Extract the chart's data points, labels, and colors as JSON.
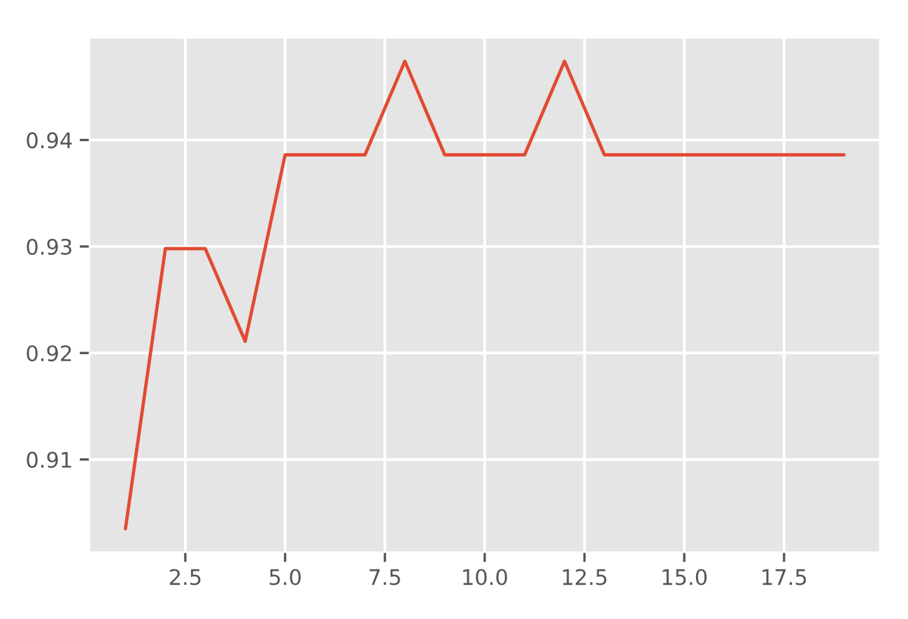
{
  "chart_data": {
    "type": "line",
    "x": [
      1,
      2,
      3,
      4,
      5,
      6,
      7,
      8,
      9,
      10,
      11,
      12,
      13,
      14,
      15,
      16,
      17,
      18,
      19
    ],
    "series": [
      {
        "color": "#e24a33",
        "values": [
          0.9035,
          0.9298,
          0.9298,
          0.9211,
          0.9386,
          0.9386,
          0.9386,
          0.9474,
          0.9386,
          0.9386,
          0.9386,
          0.9474,
          0.9386,
          0.9386,
          0.9386,
          0.9386,
          0.9386,
          0.9386,
          0.9386
        ]
      }
    ],
    "xlim": [
      0.1,
      19.9
    ],
    "ylim": [
      0.9013,
      0.9496
    ],
    "xticks": [
      2.5,
      {
        "value": 5,
        "label": "5.0"
      },
      7.5,
      {
        "value": 10,
        "label": "10.0"
      },
      12.5,
      {
        "value": 15,
        "label": "15.0"
      },
      17.5
    ],
    "yticks": [
      0.91,
      0.92,
      0.93,
      0.94
    ],
    "grid": true
  }
}
